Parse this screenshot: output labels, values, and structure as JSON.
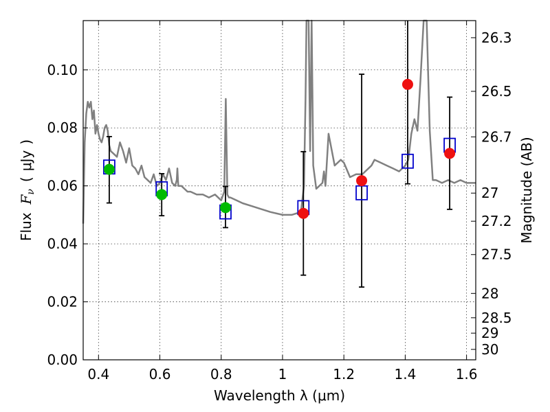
{
  "chart_data": {
    "type": "scatter",
    "xlabel": "Wavelength  λ (μm)",
    "ylabel": "Flux  F_ν  ( μJy )",
    "ylabel_parts": {
      "prefix": "Flux",
      "symbol": "F",
      "subscript": "ν",
      "unit_open": "(",
      "unit": "μJy",
      "unit_close": ")"
    },
    "ylabel_right": "Magnitude (AB)",
    "xlim": [
      0.35,
      1.63
    ],
    "ylim": [
      0.0,
      0.117
    ],
    "grid": true,
    "x_ticks": [
      0.4,
      0.6,
      0.8,
      1.0,
      1.2,
      1.4,
      1.6
    ],
    "x_tick_labels": [
      "0.4",
      "0.6",
      "0.8",
      "1",
      "1.2",
      "1.4",
      "1.6"
    ],
    "y_ticks": [
      0.0,
      0.02,
      0.04,
      0.06,
      0.08,
      0.1
    ],
    "y_tick_labels": [
      "0.00",
      "0.02",
      "0.04",
      "0.06",
      "0.08",
      "0.10"
    ],
    "right_ticks": [
      {
        "flux": 0.1111,
        "label": "26.3"
      },
      {
        "flux": 0.0926,
        "label": "26.5"
      },
      {
        "flux": 0.0769,
        "label": "26.7"
      },
      {
        "flux": 0.0575,
        "label": "27"
      },
      {
        "flux": 0.0478,
        "label": "27.2"
      },
      {
        "flux": 0.0363,
        "label": "27.5"
      },
      {
        "flux": 0.0229,
        "label": "28"
      },
      {
        "flux": 0.0145,
        "label": "28.5"
      },
      {
        "flux": 0.0092,
        "label": "29"
      },
      {
        "flux": 0.0036,
        "label": "30"
      }
    ],
    "series": [
      {
        "marker": "circle",
        "color": "#00bb00",
        "points": [
          {
            "x": 0.435,
            "y": 0.0657,
            "yerr_low": 0.0541,
            "yerr_high": 0.077
          },
          {
            "x": 0.606,
            "y": 0.057,
            "yerr_low": 0.0497,
            "yerr_high": 0.0642
          },
          {
            "x": 0.814,
            "y": 0.0525,
            "yerr_low": 0.0456,
            "yerr_high": 0.0598
          }
        ]
      },
      {
        "marker": "circle",
        "color": "#ee1111",
        "points": [
          {
            "x": 1.068,
            "y": 0.0505,
            "yerr_low": 0.0292,
            "yerr_high": 0.0718
          },
          {
            "x": 1.258,
            "y": 0.0618,
            "yerr_low": 0.0251,
            "yerr_high": 0.0985
          },
          {
            "x": 1.408,
            "y": 0.095,
            "yerr_low": 0.0607,
            "yerr_high": 0.117
          },
          {
            "x": 1.545,
            "y": 0.0712,
            "yerr_low": 0.0519,
            "yerr_high": 0.0906
          }
        ]
      },
      {
        "marker": "open-square",
        "color": "#0000cc",
        "points": [
          {
            "x": 0.435,
            "y": 0.0665
          },
          {
            "x": 0.606,
            "y": 0.059
          },
          {
            "x": 0.814,
            "y": 0.051
          },
          {
            "x": 1.068,
            "y": 0.0525
          },
          {
            "x": 1.258,
            "y": 0.0576
          },
          {
            "x": 1.408,
            "y": 0.0685
          },
          {
            "x": 1.545,
            "y": 0.074
          }
        ]
      }
    ],
    "model_sed": {
      "color": "#808080",
      "x": [
        0.35,
        0.355,
        0.36,
        0.365,
        0.37,
        0.375,
        0.38,
        0.385,
        0.39,
        0.395,
        0.4,
        0.405,
        0.41,
        0.415,
        0.42,
        0.425,
        0.43,
        0.435,
        0.44,
        0.45,
        0.46,
        0.47,
        0.48,
        0.49,
        0.5,
        0.51,
        0.52,
        0.53,
        0.54,
        0.55,
        0.56,
        0.57,
        0.58,
        0.59,
        0.6,
        0.61,
        0.62,
        0.63,
        0.64,
        0.65,
        0.655,
        0.657,
        0.66,
        0.67,
        0.68,
        0.69,
        0.7,
        0.72,
        0.74,
        0.76,
        0.78,
        0.8,
        0.81,
        0.815,
        0.82,
        0.825,
        0.83,
        0.85,
        0.87,
        0.9,
        0.93,
        0.96,
        1.0,
        1.03,
        1.06,
        1.07,
        1.075,
        1.078,
        1.085,
        1.09,
        1.095,
        1.1,
        1.11,
        1.12,
        1.13,
        1.135,
        1.14,
        1.15,
        1.17,
        1.19,
        1.2,
        1.22,
        1.24,
        1.26,
        1.27,
        1.28,
        1.29,
        1.3,
        1.32,
        1.34,
        1.36,
        1.38,
        1.4,
        1.41,
        1.42,
        1.43,
        1.44,
        1.45,
        1.46,
        1.47,
        1.48,
        1.49,
        1.5,
        1.52,
        1.54,
        1.56,
        1.58,
        1.6,
        1.63
      ],
      "y": [
        0.047,
        0.075,
        0.085,
        0.089,
        0.087,
        0.089,
        0.083,
        0.086,
        0.078,
        0.081,
        0.078,
        0.076,
        0.075,
        0.077,
        0.08,
        0.081,
        0.079,
        0.074,
        0.072,
        0.071,
        0.07,
        0.075,
        0.072,
        0.068,
        0.073,
        0.067,
        0.066,
        0.064,
        0.067,
        0.063,
        0.062,
        0.061,
        0.064,
        0.06,
        0.061,
        0.064,
        0.062,
        0.066,
        0.061,
        0.06,
        0.062,
        0.066,
        0.06,
        0.06,
        0.059,
        0.058,
        0.058,
        0.057,
        0.057,
        0.056,
        0.057,
        0.055,
        0.058,
        0.09,
        0.057,
        0.056,
        0.056,
        0.055,
        0.054,
        0.053,
        0.052,
        0.051,
        0.05,
        0.05,
        0.051,
        0.06,
        0.09,
        0.117,
        0.117,
        0.072,
        0.117,
        0.067,
        0.059,
        0.06,
        0.061,
        0.065,
        0.06,
        0.078,
        0.067,
        0.069,
        0.068,
        0.063,
        0.064,
        0.064,
        0.065,
        0.066,
        0.067,
        0.069,
        0.068,
        0.067,
        0.066,
        0.065,
        0.067,
        0.069,
        0.078,
        0.083,
        0.079,
        0.097,
        0.117,
        0.117,
        0.079,
        0.062,
        0.062,
        0.061,
        0.062,
        0.061,
        0.062,
        0.061,
        0.061
      ]
    }
  }
}
